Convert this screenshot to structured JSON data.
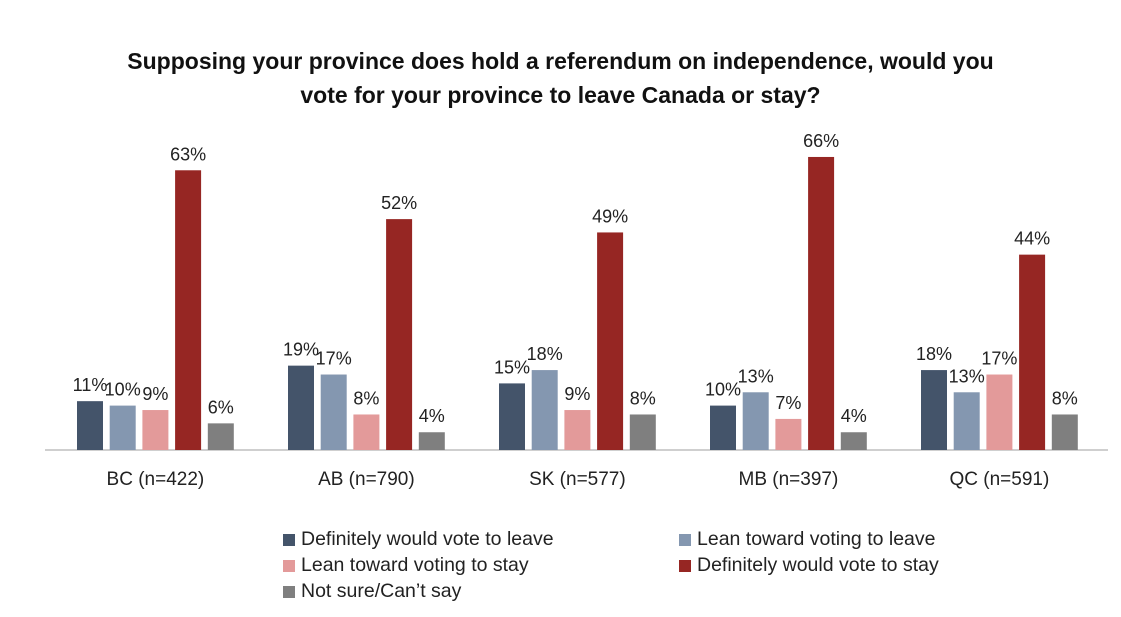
{
  "chart_data": {
    "type": "bar",
    "title": "Supposing your province does hold a referendum on independence, would you vote for your province to leave Canada or stay?",
    "title_lines": [
      "Supposing your province does hold a referendum on independence, would you",
      "vote for your province to leave Canada or stay?"
    ],
    "categories": [
      "BC (n=422)",
      "AB (n=790)",
      "SK (n=577)",
      "MB (n=397)",
      "QC (n=591)"
    ],
    "series": [
      {
        "name": "Definitely would vote to leave",
        "color": "#44546A",
        "values": [
          11,
          19,
          15,
          10,
          18
        ]
      },
      {
        "name": "Lean toward voting to leave",
        "color": "#8497B0",
        "values": [
          10,
          17,
          18,
          13,
          13
        ]
      },
      {
        "name": "Lean toward voting to stay",
        "color": "#E39A9A",
        "values": [
          9,
          8,
          9,
          7,
          17
        ]
      },
      {
        "name": "Definitely would vote to stay",
        "color": "#962623",
        "values": [
          63,
          52,
          49,
          66,
          44
        ]
      },
      {
        "name": "Not sure/Can’t say",
        "color": "#7F7F7F",
        "values": [
          6,
          4,
          8,
          4,
          8
        ]
      }
    ],
    "value_suffix": "%",
    "xlabel": "",
    "ylabel": "",
    "ylim": [
      0,
      70
    ],
    "grid": false,
    "legend_position": "bottom"
  }
}
